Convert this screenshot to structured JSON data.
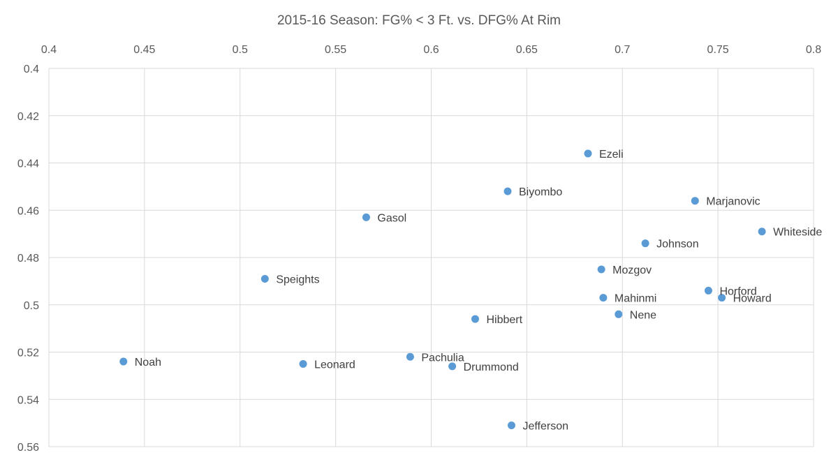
{
  "chart_data": {
    "type": "scatter",
    "title": "2015-16 Season: FG% < 3 Ft. vs. DFG% At Rim",
    "xlabel": "",
    "ylabel": "",
    "xlim": [
      0.4,
      0.8
    ],
    "ylim": [
      0.4,
      0.56
    ],
    "y_reversed": true,
    "x_axis_position": "top",
    "grid": true,
    "x_ticks": [
      "0.4",
      "0.45",
      "0.5",
      "0.55",
      "0.6",
      "0.65",
      "0.7",
      "0.75",
      "0.8"
    ],
    "y_ticks": [
      "0.4",
      "0.42",
      "0.44",
      "0.46",
      "0.48",
      "0.5",
      "0.52",
      "0.54",
      "0.56"
    ],
    "point_color": "#5b9bd5",
    "points": [
      {
        "label": "Ezeli",
        "x": 0.682,
        "y": 0.436
      },
      {
        "label": "Biyombo",
        "x": 0.64,
        "y": 0.452
      },
      {
        "label": "Marjanovic",
        "x": 0.738,
        "y": 0.456
      },
      {
        "label": "Gasol",
        "x": 0.566,
        "y": 0.463
      },
      {
        "label": "Whiteside",
        "x": 0.773,
        "y": 0.469
      },
      {
        "label": "Johnson",
        "x": 0.712,
        "y": 0.474
      },
      {
        "label": "Mozgov",
        "x": 0.689,
        "y": 0.485
      },
      {
        "label": "Speights",
        "x": 0.513,
        "y": 0.489
      },
      {
        "label": "Horford",
        "x": 0.745,
        "y": 0.494
      },
      {
        "label": "Howard",
        "x": 0.752,
        "y": 0.497
      },
      {
        "label": "Mahinmi",
        "x": 0.69,
        "y": 0.497
      },
      {
        "label": "Nene",
        "x": 0.698,
        "y": 0.504
      },
      {
        "label": "Hibbert",
        "x": 0.623,
        "y": 0.506
      },
      {
        "label": "Pachulia",
        "x": 0.589,
        "y": 0.522
      },
      {
        "label": "Noah",
        "x": 0.439,
        "y": 0.524
      },
      {
        "label": "Leonard",
        "x": 0.533,
        "y": 0.525
      },
      {
        "label": "Drummond",
        "x": 0.611,
        "y": 0.526
      },
      {
        "label": "Jefferson",
        "x": 0.642,
        "y": 0.551
      }
    ]
  }
}
